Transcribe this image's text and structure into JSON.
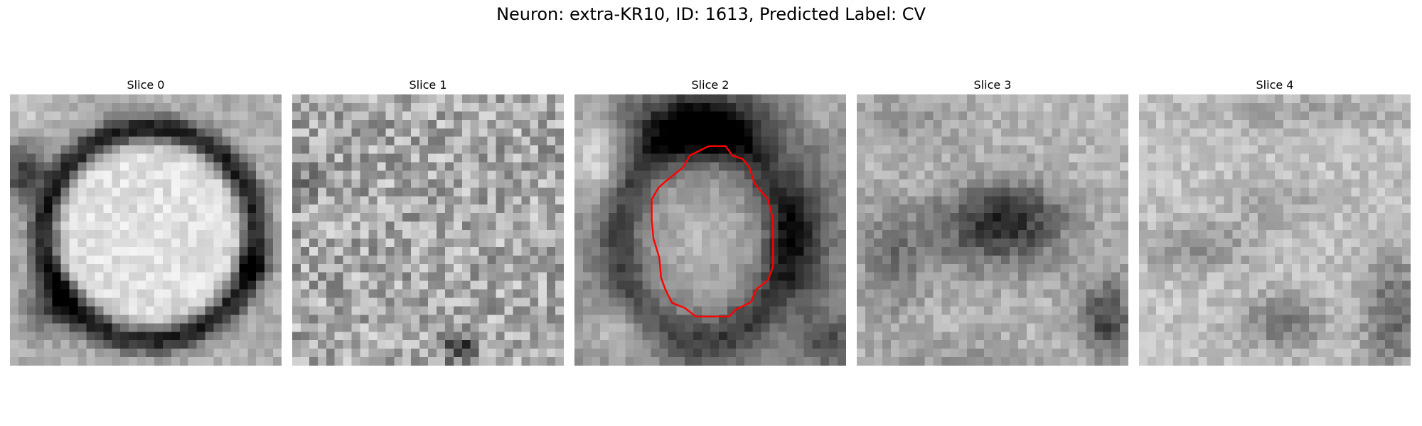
{
  "figure": {
    "title": "Neuron: extra-KR10, ID: 1613, Predicted Label: CV"
  },
  "panels": [
    {
      "label": "Slice 0",
      "pattern": "bright-cell-with-dark-ring"
    },
    {
      "label": "Slice 1",
      "pattern": "uniform-noise"
    },
    {
      "label": "Slice 2",
      "pattern": "cell-with-contour"
    },
    {
      "label": "Slice 3",
      "pattern": "dark-center"
    },
    {
      "label": "Slice 4",
      "pattern": "bright-with-dark-corners"
    }
  ],
  "contour": {
    "panel": "Slice 2",
    "color": "#ff0000"
  },
  "colormap": "gray"
}
